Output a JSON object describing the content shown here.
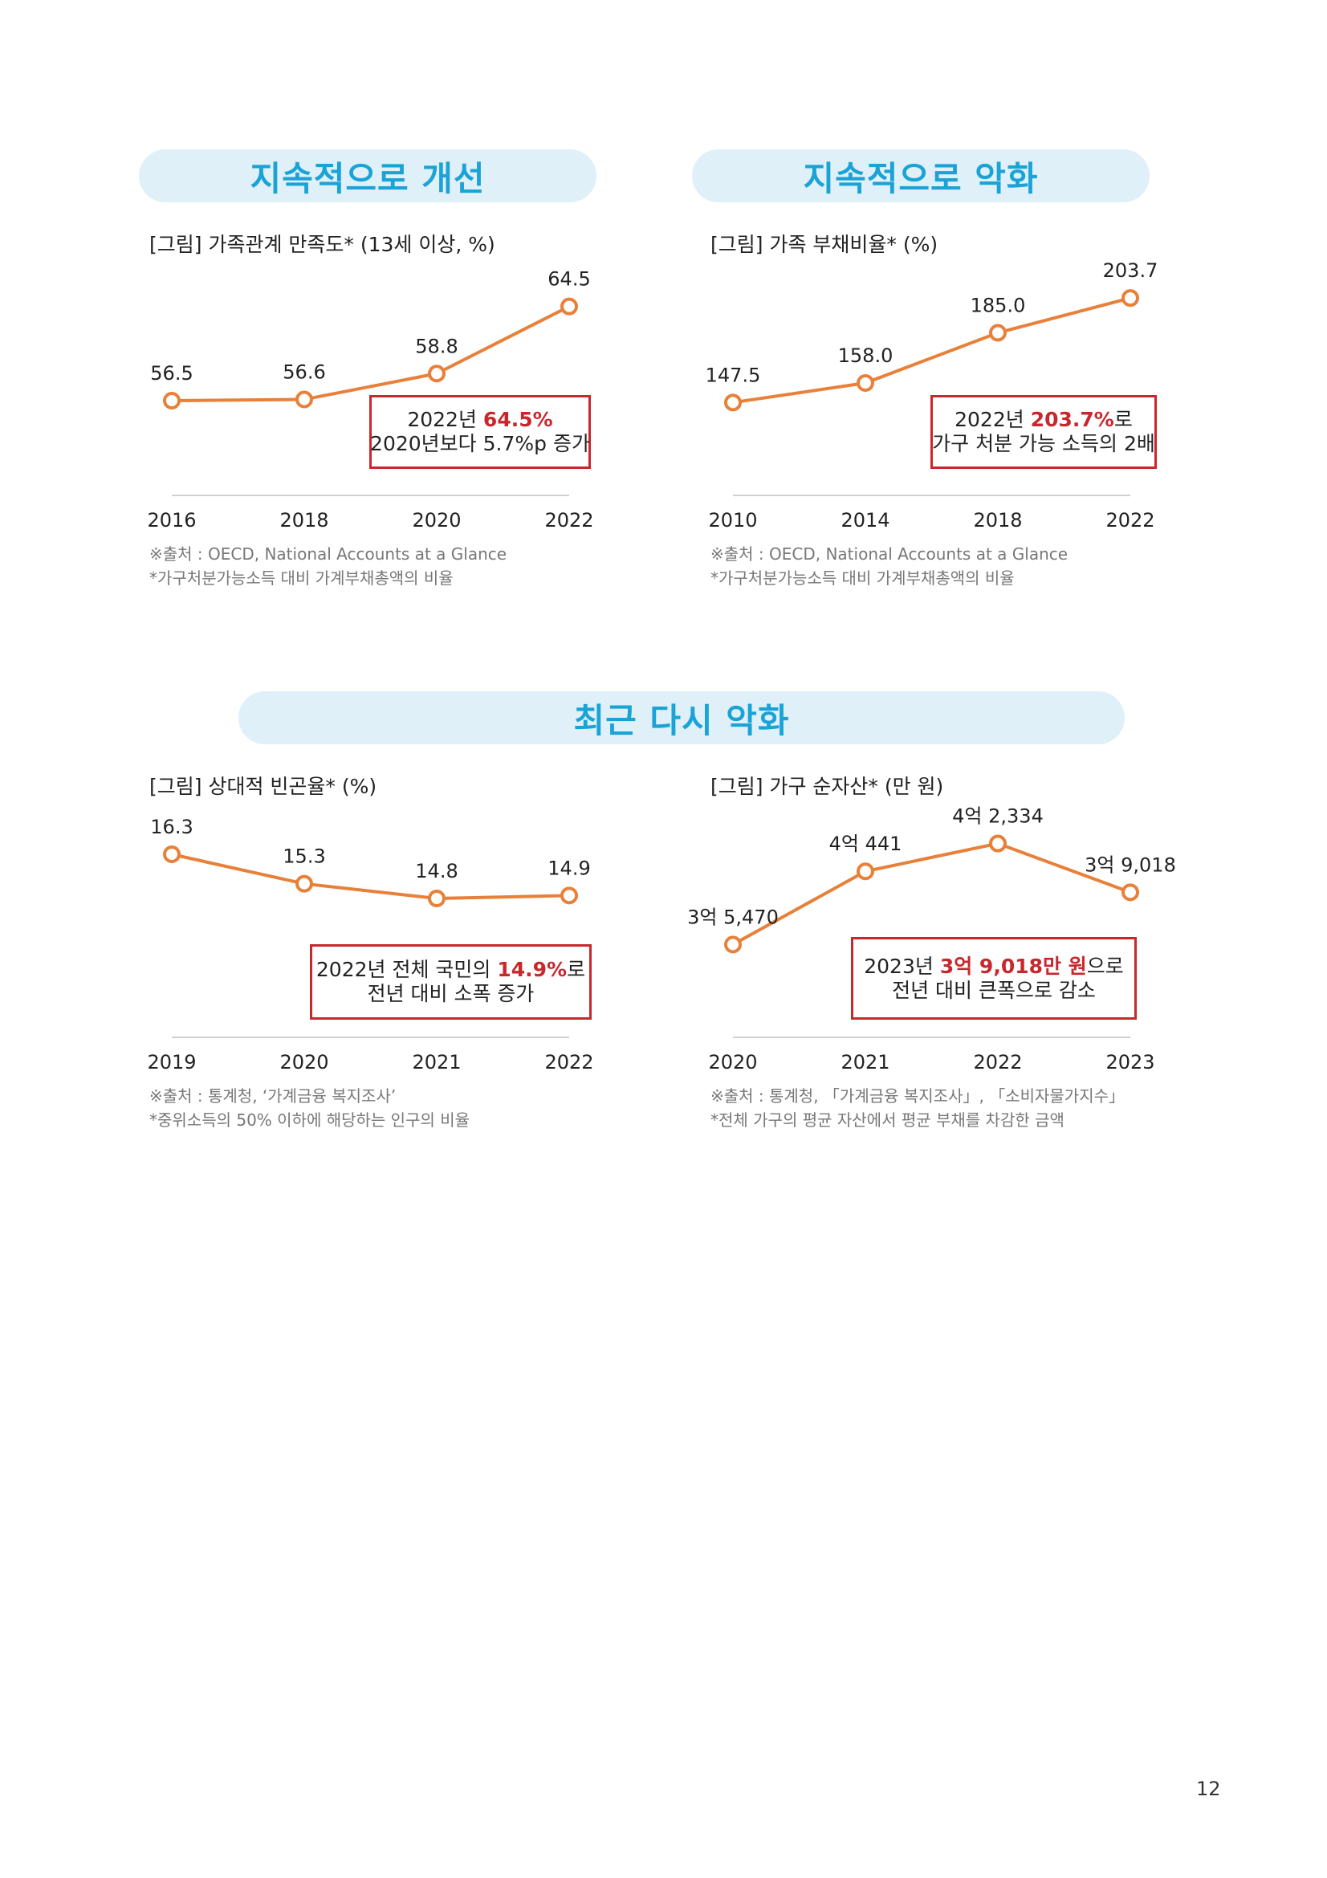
{
  "headers": {
    "improve": "지속적으로 개선",
    "worsen": "지속적으로 악화",
    "recent": "최근 다시 악화"
  },
  "charts": {
    "satisfaction": {
      "title": "[그림] 가족관계 만족도* (13세 이상, %)",
      "callout": {
        "pre": "2022년 ",
        "hl": "64.5%",
        "post": "",
        "line2": "2020년보다 5.7%p 증가"
      },
      "source": "※출처 : OECD, National Accounts at a Glance",
      "note": "*가구처분가능소득 대비 가계부채총액의 비율"
    },
    "debt": {
      "title": "[그림] 가족 부채비율* (%)",
      "callout": {
        "pre": "2022년 ",
        "hl": "203.7%",
        "post": "로",
        "line2": "가구 처분 가능 소득의 2배"
      },
      "source": "※출처 : OECD, National Accounts at a Glance",
      "note": "*가구처분가능소득 대비 가계부채총액의 비율"
    },
    "poverty": {
      "title": "[그림] 상대적 빈곤율* (%)",
      "callout": {
        "pre": "2022년 전체 국민의 ",
        "hl": "14.9%",
        "post": "로",
        "line2": "전년 대비 소폭 증가"
      },
      "source": "※출처 : 통계청, ‘가계금융 복지조사’",
      "note": "*중위소득의 50% 이하에 해당하는 인구의 비율"
    },
    "assets": {
      "title": "[그림] 가구 순자산* (만 원)",
      "callout": {
        "pre": "2023년 ",
        "hl": "3억 9,018만 원",
        "post": "으로",
        "line2": "전년 대비 큰폭으로 감소"
      },
      "source": "※출처 : 통계청, 「가계금융 복지조사」, 「소비자물가지수」",
      "note": "*전체 가구의 평균 자산에서 평균 부채를 차감한 금액"
    }
  },
  "chart_data": [
    {
      "type": "line",
      "title": "가족관계 만족도",
      "x": [
        "2016",
        "2018",
        "2020",
        "2022"
      ],
      "values": [
        56.5,
        56.6,
        58.8,
        64.5
      ],
      "labels": [
        "56.5",
        "56.6",
        "58.8",
        "64.5"
      ],
      "ylim": [
        52,
        67
      ]
    },
    {
      "type": "line",
      "title": "가족 부채비율",
      "x": [
        "2010",
        "2014",
        "2018",
        "2022"
      ],
      "values": [
        147.5,
        158.0,
        185.0,
        203.7
      ],
      "labels": [
        "147.5",
        "158.0",
        "185.0",
        "203.7"
      ],
      "ylim": [
        120,
        215
      ]
    },
    {
      "type": "line",
      "title": "상대적 빈곤율",
      "x": [
        "2019",
        "2020",
        "2021",
        "2022"
      ],
      "values": [
        16.3,
        15.3,
        14.8,
        14.9
      ],
      "labels": [
        "16.3",
        "15.3",
        "14.8",
        "14.9"
      ],
      "ylim": [
        11.5,
        17.5
      ]
    },
    {
      "type": "line",
      "title": "가구 순자산",
      "x": [
        "2020",
        "2021",
        "2022",
        "2023"
      ],
      "values": [
        35470,
        40441,
        42334,
        39018
      ],
      "labels": [
        "3억 5,470",
        "4억 441",
        "4억 2,334",
        "3억 9,018"
      ],
      "ylim": [
        32000,
        44000
      ]
    }
  ],
  "page_number": "12",
  "colors": {
    "line": "#e8803a",
    "accent": "#c8282d",
    "header_text": "#1aa3d6",
    "header_bg": "#dff0f8"
  }
}
